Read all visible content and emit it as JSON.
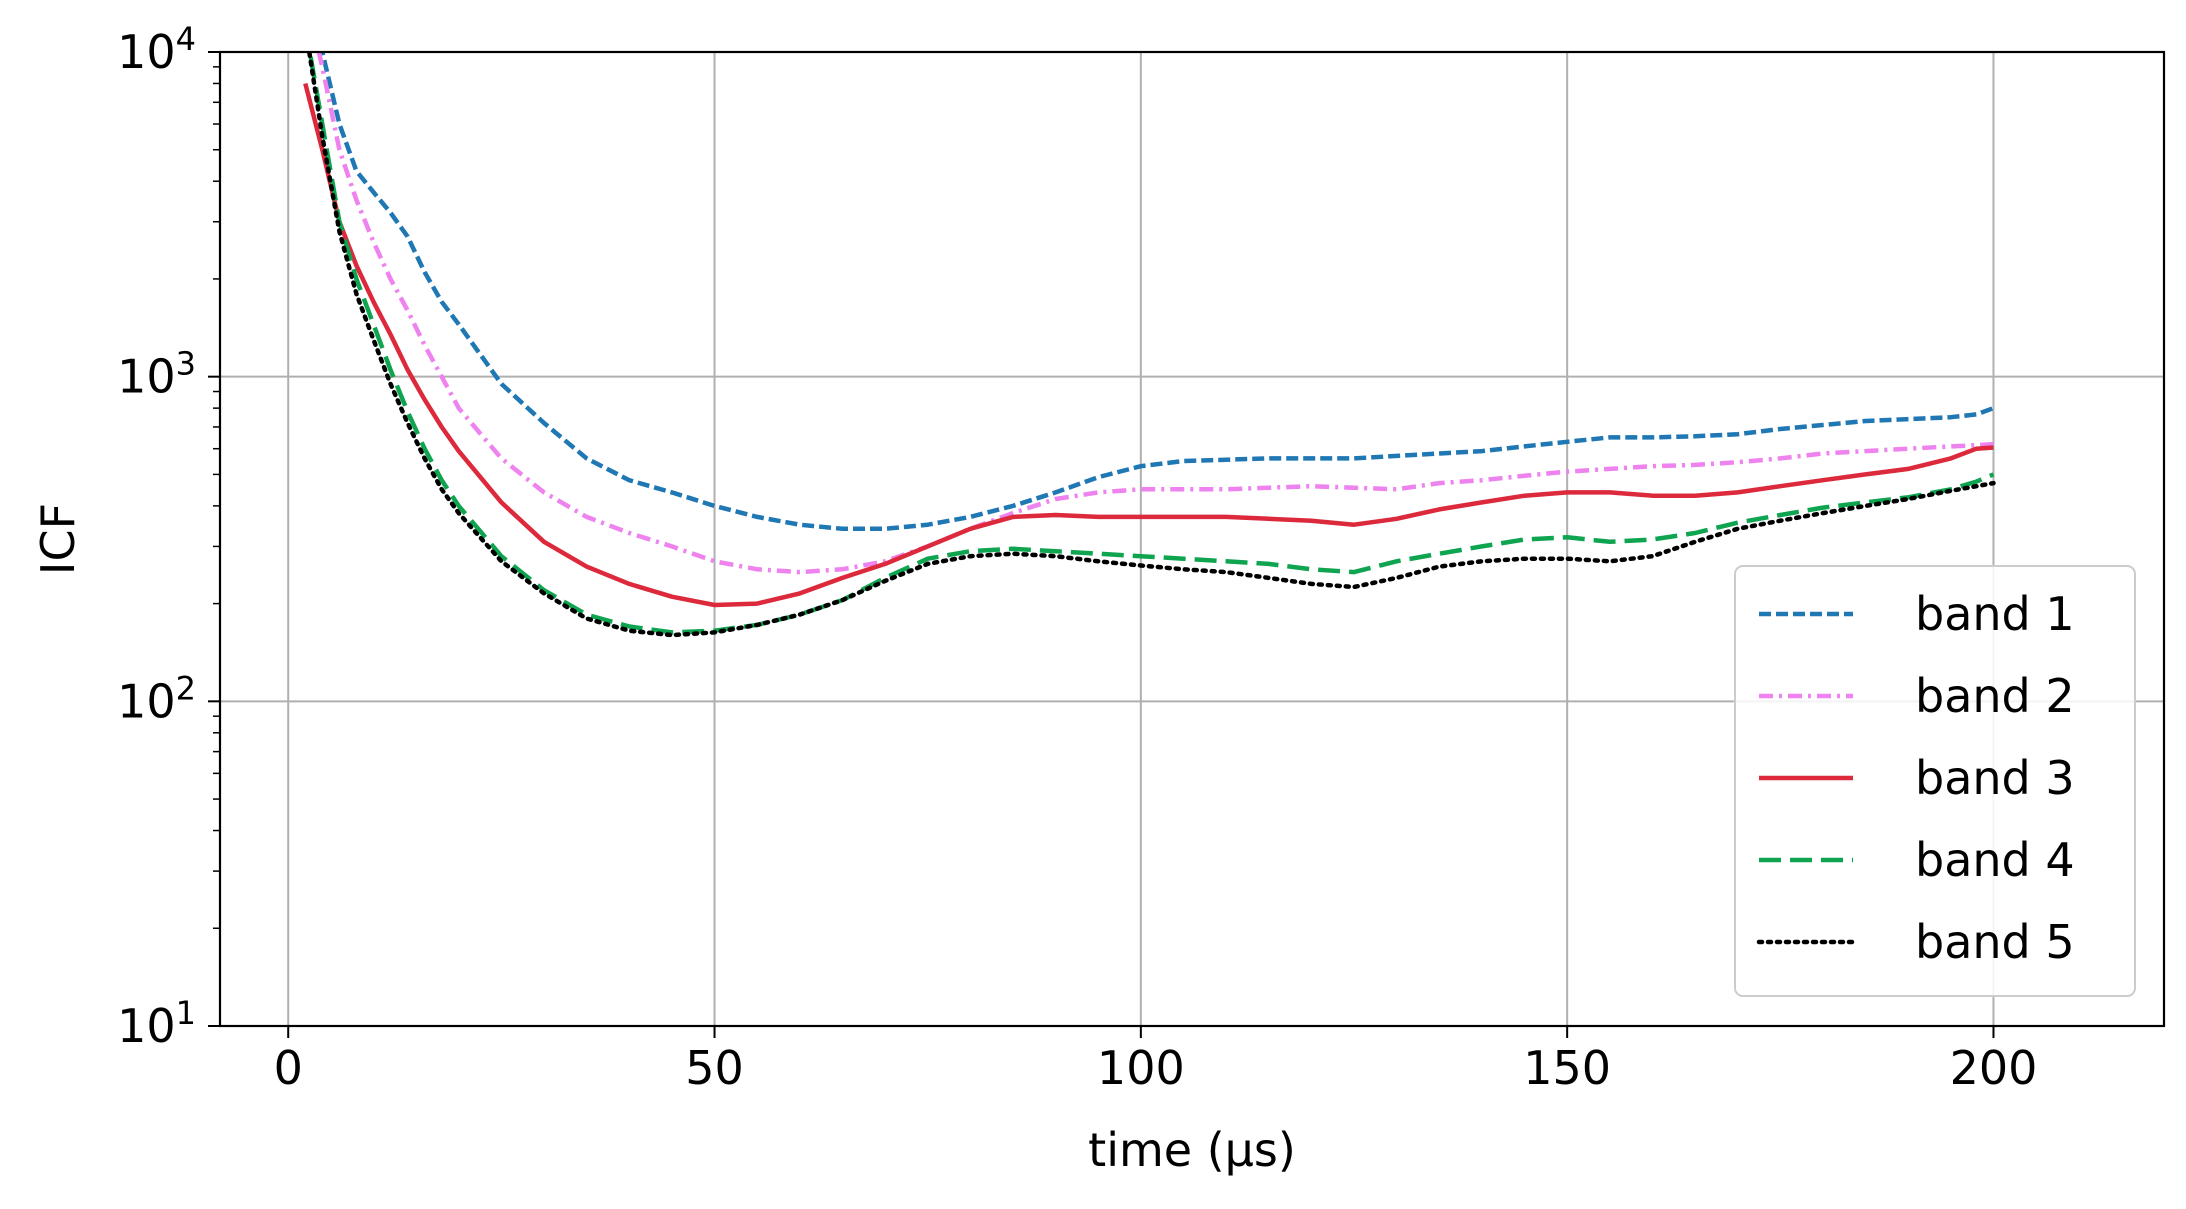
{
  "chart_data": {
    "type": "line",
    "title": "",
    "xlabel": "time (µs)",
    "ylabel": "ICF",
    "xlim": [
      -8,
      220
    ],
    "ylim": [
      10,
      10000
    ],
    "yscale": "log",
    "grid": true,
    "legend_position": "lower right",
    "x_ticks": [
      0,
      50,
      100,
      150,
      200
    ],
    "x_tick_labels": [
      "0",
      "50",
      "100",
      "150",
      "200"
    ],
    "y_ticks": [
      {
        "value": 10,
        "base": "10",
        "exp": "1"
      },
      {
        "value": 100,
        "base": "10",
        "exp": "2"
      },
      {
        "value": 1000,
        "base": "10",
        "exp": "3"
      },
      {
        "value": 10000,
        "base": "10",
        "exp": "4"
      }
    ],
    "series": [
      {
        "name": "band 1",
        "color": "#1f77b4",
        "dash": "dashed",
        "x": [
          2,
          4,
          6,
          8,
          10,
          12,
          14,
          16,
          18,
          20,
          25,
          30,
          35,
          40,
          45,
          50,
          55,
          60,
          65,
          70,
          75,
          80,
          85,
          90,
          95,
          100,
          105,
          110,
          115,
          120,
          125,
          130,
          135,
          140,
          145,
          150,
          155,
          160,
          165,
          170,
          175,
          180,
          185,
          190,
          195,
          198,
          200
        ],
        "y": [
          15000,
          10000,
          6000,
          4300,
          3700,
          3200,
          2700,
          2100,
          1700,
          1450,
          950,
          720,
          560,
          480,
          440,
          400,
          370,
          350,
          340,
          340,
          350,
          370,
          400,
          440,
          490,
          530,
          550,
          555,
          560,
          560,
          560,
          570,
          580,
          590,
          610,
          630,
          650,
          650,
          655,
          665,
          690,
          710,
          730,
          740,
          750,
          765,
          800
        ]
      },
      {
        "name": "band 2",
        "color": "#ee82ee",
        "dash": "dashdot",
        "x": [
          2,
          4,
          6,
          8,
          10,
          12,
          14,
          16,
          18,
          20,
          25,
          30,
          35,
          40,
          45,
          50,
          55,
          60,
          65,
          70,
          75,
          80,
          85,
          90,
          95,
          100,
          105,
          110,
          115,
          120,
          125,
          130,
          135,
          140,
          145,
          150,
          155,
          160,
          165,
          170,
          175,
          180,
          185,
          190,
          195,
          198,
          200
        ],
        "y": [
          15000,
          9000,
          5000,
          3500,
          2600,
          2000,
          1600,
          1250,
          1000,
          800,
          560,
          440,
          370,
          330,
          300,
          270,
          255,
          250,
          255,
          270,
          300,
          340,
          380,
          420,
          440,
          450,
          450,
          450,
          455,
          460,
          455,
          450,
          470,
          480,
          495,
          510,
          520,
          530,
          535,
          545,
          560,
          580,
          590,
          600,
          610,
          615,
          620
        ]
      },
      {
        "name": "band 3",
        "color": "#dc2a3c",
        "dash": "solid",
        "x": [
          2,
          4,
          6,
          8,
          10,
          12,
          14,
          16,
          18,
          20,
          25,
          30,
          35,
          40,
          45,
          50,
          55,
          60,
          65,
          70,
          75,
          80,
          85,
          90,
          95,
          100,
          105,
          110,
          115,
          120,
          125,
          130,
          135,
          140,
          145,
          150,
          155,
          160,
          165,
          170,
          175,
          180,
          185,
          190,
          195,
          198,
          200
        ],
        "y": [
          8000,
          5000,
          3000,
          2200,
          1700,
          1350,
          1050,
          850,
          700,
          590,
          410,
          310,
          260,
          230,
          210,
          198,
          200,
          215,
          240,
          265,
          300,
          340,
          370,
          375,
          370,
          370,
          370,
          370,
          365,
          360,
          350,
          365,
          390,
          410,
          430,
          440,
          440,
          430,
          430,
          440,
          460,
          480,
          500,
          520,
          560,
          600,
          605
        ]
      },
      {
        "name": "band 4",
        "color": "#0ea450",
        "dash": "longdash",
        "x": [
          2,
          4,
          6,
          8,
          10,
          12,
          14,
          16,
          18,
          20,
          25,
          30,
          35,
          40,
          45,
          50,
          55,
          60,
          65,
          70,
          75,
          80,
          85,
          90,
          95,
          100,
          105,
          110,
          115,
          120,
          125,
          130,
          135,
          140,
          145,
          150,
          155,
          160,
          165,
          170,
          175,
          180,
          185,
          190,
          195,
          198,
          200
        ],
        "y": [
          12000,
          6000,
          3000,
          2000,
          1450,
          1050,
          780,
          600,
          480,
          400,
          280,
          220,
          185,
          170,
          163,
          165,
          172,
          185,
          205,
          240,
          275,
          290,
          295,
          290,
          285,
          280,
          275,
          270,
          265,
          255,
          250,
          270,
          285,
          300,
          315,
          320,
          310,
          315,
          330,
          355,
          375,
          395,
          410,
          425,
          450,
          475,
          500
        ]
      },
      {
        "name": "band 5",
        "color": "#000000",
        "dash": "dotted",
        "x": [
          2,
          4,
          6,
          8,
          10,
          12,
          14,
          16,
          18,
          20,
          25,
          30,
          35,
          40,
          45,
          50,
          55,
          60,
          65,
          70,
          75,
          80,
          85,
          90,
          95,
          100,
          105,
          110,
          115,
          120,
          125,
          130,
          135,
          140,
          145,
          150,
          155,
          160,
          165,
          170,
          175,
          180,
          185,
          190,
          195,
          198,
          200
        ],
        "y": [
          12000,
          5500,
          2800,
          1800,
          1300,
          950,
          720,
          560,
          450,
          380,
          270,
          215,
          180,
          165,
          160,
          163,
          172,
          185,
          205,
          235,
          265,
          280,
          285,
          280,
          270,
          262,
          255,
          250,
          240,
          230,
          225,
          240,
          260,
          270,
          275,
          275,
          270,
          280,
          310,
          340,
          360,
          380,
          400,
          420,
          445,
          460,
          470
        ]
      }
    ]
  }
}
